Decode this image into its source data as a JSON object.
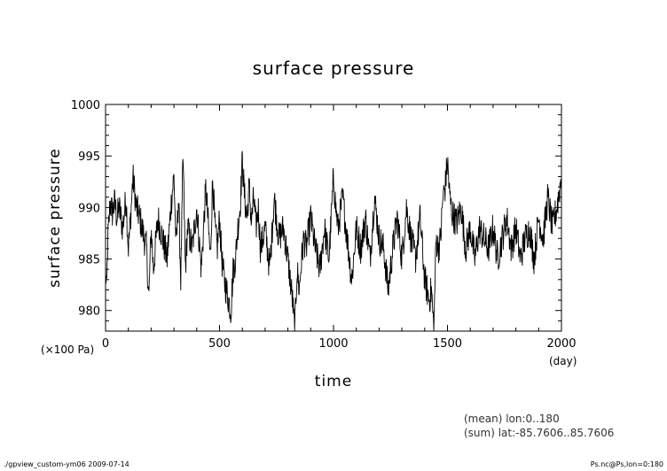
{
  "chart_data": {
    "type": "line",
    "title": "surface pressure",
    "xlabel": "time",
    "ylabel": "surface pressure",
    "x_unit": "(day)",
    "y_unit": "(×100 Pa)",
    "xlim": [
      0,
      2000
    ],
    "ylim": [
      978,
      1000
    ],
    "xticks": [
      0,
      500,
      1000,
      1500,
      2000
    ],
    "yticks": [
      980,
      985,
      990,
      995,
      1000
    ],
    "grid": false,
    "legend": "none",
    "line_color": "#000000",
    "series": [
      {
        "x": [
          0,
          5,
          10,
          15,
          20,
          30,
          40,
          50,
          60,
          75,
          90,
          100,
          110,
          120,
          135,
          150,
          165,
          180,
          190,
          200,
          210,
          230,
          250,
          270,
          290,
          300,
          310,
          320,
          330,
          340,
          350,
          360,
          380,
          400,
          420,
          440,
          460,
          470,
          480,
          490,
          500,
          510,
          520,
          530,
          540,
          550,
          560,
          570,
          580,
          590,
          600,
          610,
          620,
          630,
          640,
          650,
          660,
          670,
          680,
          700,
          720,
          740,
          760,
          780,
          800,
          820,
          830,
          840,
          850,
          860,
          870,
          880,
          900,
          920,
          940,
          960,
          980,
          990,
          1000,
          1010,
          1020,
          1040,
          1060,
          1080,
          1100,
          1120,
          1140,
          1160,
          1180,
          1200,
          1220,
          1240,
          1250,
          1260,
          1280,
          1300,
          1320,
          1340,
          1360,
          1380,
          1400,
          1420,
          1430,
          1440,
          1450,
          1460,
          1470,
          1480,
          1490,
          1500,
          1510,
          1520,
          1540,
          1560,
          1580,
          1600,
          1620,
          1640,
          1660,
          1680,
          1700,
          1720,
          1740,
          1760,
          1780,
          1800,
          1820,
          1840,
          1860,
          1880,
          1900,
          1920,
          1940,
          1960,
          1980,
          2000
        ],
        "values": [
          984,
          981.5,
          987,
          988.5,
          990.5,
          989.5,
          990.5,
          989,
          990,
          988,
          991,
          986,
          989,
          993,
          990,
          989,
          987.5,
          986,
          981,
          988,
          984,
          989,
          987,
          985,
          991,
          993,
          986,
          991,
          983,
          995,
          984,
          988,
          986,
          990,
          984,
          992,
          985,
          993,
          988,
          986,
          989,
          985,
          983,
          982,
          981,
          980,
          984,
          985,
          988,
          990,
          994.5,
          991,
          989,
          992,
          988.5,
          991,
          988,
          990,
          986,
          988,
          984,
          991,
          987,
          988,
          985,
          981,
          978,
          984,
          982,
          985,
          987,
          986,
          989,
          986,
          984,
          988,
          985,
          989,
          993,
          990,
          988,
          991,
          987,
          983,
          988,
          986,
          989,
          985,
          991,
          987,
          986,
          982,
          984,
          986,
          989,
          985,
          990,
          987,
          985,
          989,
          983,
          981,
          982,
          978,
          987,
          986,
          987,
          991,
          992,
          994.5,
          991,
          989.5,
          988.5,
          990,
          986,
          988,
          985,
          988,
          987,
          986,
          988,
          985,
          987,
          989,
          986,
          988,
          985,
          987,
          988,
          985,
          989,
          987,
          991,
          988,
          990,
          993
        ]
      }
    ]
  },
  "annotations": {
    "mean": "(mean) lon:0..180",
    "sum": "(sum) lat:-85.7606..85.7606"
  },
  "footer": {
    "left": "./gpview_custom-ym06   2009-07-14",
    "right": "Ps.nc@Ps,lon=0:180"
  }
}
